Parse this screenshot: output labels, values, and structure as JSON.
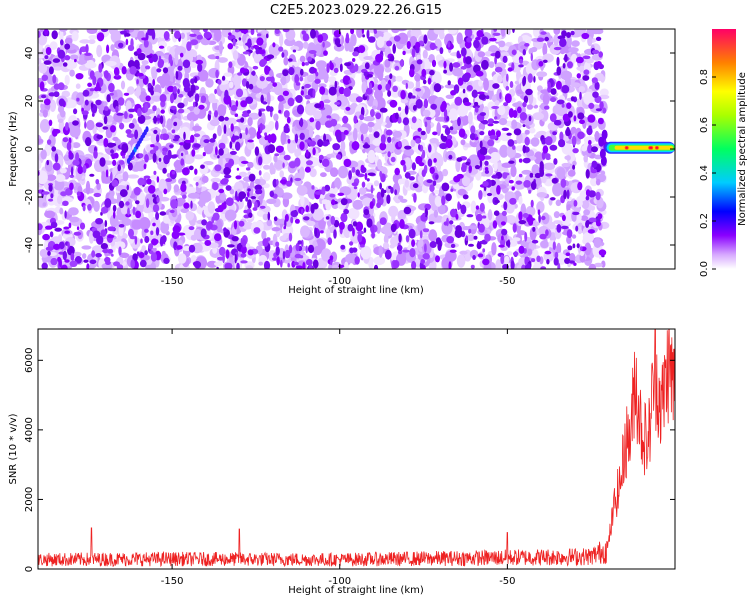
{
  "title": "C2E5.2023.029.22.26.G15",
  "chart_data": [
    {
      "type": "heatmap",
      "xlabel": "Height of straight line (km)",
      "ylabel": "Frequency (Hz)",
      "xlim": [
        -190,
        0
      ],
      "ylim": [
        -50,
        50
      ],
      "xticks": [
        -150,
        -100,
        -50
      ],
      "yticks": [
        -40,
        -20,
        0,
        20,
        40
      ],
      "colorbar": {
        "label": "Normalized spectral amplitude",
        "ticks": [
          0.0,
          0.2,
          0.4,
          0.6,
          0.8
        ],
        "range": [
          0,
          1
        ],
        "colormap": [
          "#ffffff",
          "#8a00ff",
          "#0000ff",
          "#00ffff",
          "#00ff00",
          "#ffff00",
          "#ff8000",
          "#ff0060"
        ]
      },
      "features": {
        "noise_region_x": [
          -190,
          -21
        ],
        "signal_track": {
          "x_start": -21,
          "x_end": 0,
          "frequency": 0.5,
          "amplitude_range": [
            0.5,
            0.95
          ]
        }
      }
    },
    {
      "type": "line",
      "xlabel": "Height of straight line (km)",
      "ylabel": "SNR (10 * v/v)",
      "xlim": [
        -190,
        0
      ],
      "ylim": [
        0,
        6900
      ],
      "xticks": [
        -150,
        -100,
        -50
      ],
      "yticks": [
        0,
        2000,
        4000,
        6000
      ],
      "series": [
        {
          "color": "#ee2222",
          "baseline": [
            [
              -190,
              300
            ],
            [
              -150,
              320
            ],
            [
              -100,
              300
            ],
            [
              -60,
              350
            ],
            [
              -25,
              400
            ],
            [
              -20,
              650
            ],
            [
              -18,
              1900
            ],
            [
              -16,
              2600
            ],
            [
              -15,
              3600
            ],
            [
              -13,
              3900
            ],
            [
              -12,
              5600
            ],
            [
              -10,
              4000
            ],
            [
              -8,
              3600
            ],
            [
              -6,
              5800
            ],
            [
              -4,
              4600
            ],
            [
              -2,
              5900
            ],
            [
              0,
              5200
            ]
          ],
          "spikes": [
            [
              -174,
              1180
            ],
            [
              -130,
              1150
            ],
            [
              -50,
              1050
            ]
          ]
        }
      ]
    }
  ]
}
